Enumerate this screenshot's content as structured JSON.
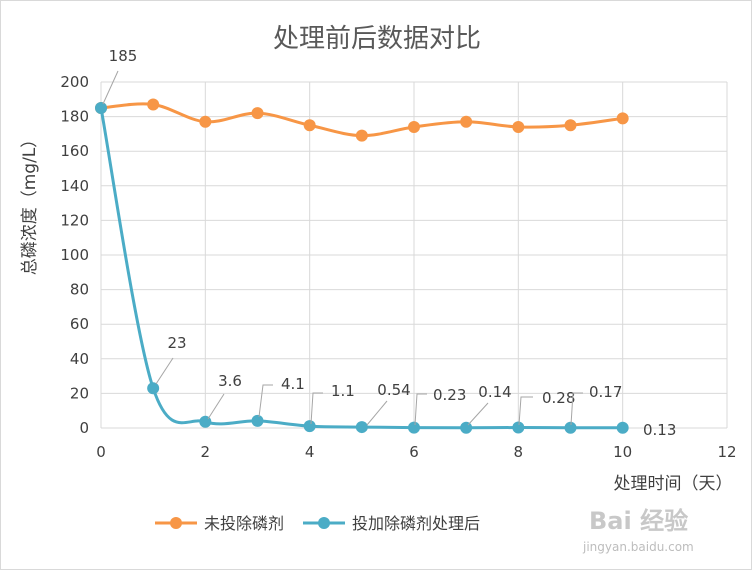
{
  "chart_data": {
    "type": "line",
    "title": "处理前后数据对比",
    "xlabel": "处理时间（天）",
    "ylabel": "总磷浓度（mg/L）",
    "xlim": [
      0,
      12
    ],
    "ylim": [
      0,
      200
    ],
    "x_ticks": [
      0,
      2,
      4,
      6,
      8,
      10,
      12
    ],
    "y_ticks": [
      0,
      20,
      40,
      60,
      80,
      100,
      120,
      140,
      160,
      180,
      200
    ],
    "grid": true,
    "legend_position": "bottom",
    "series": [
      {
        "name": "未投除磷剂",
        "color": "#f79646",
        "x": [
          0,
          1,
          2,
          3,
          4,
          5,
          6,
          7,
          8,
          9,
          10
        ],
        "values": [
          185,
          187,
          177,
          182,
          175,
          169,
          174,
          177,
          174,
          175,
          179
        ]
      },
      {
        "name": "投加除磷剂处理后",
        "color": "#4bacc6",
        "x": [
          0,
          1,
          2,
          3,
          4,
          5,
          6,
          7,
          8,
          9,
          10
        ],
        "values": [
          185,
          23,
          3.6,
          4.1,
          1.1,
          0.54,
          0.23,
          0.14,
          0.28,
          0.17,
          0.13
        ],
        "data_labels": [
          "185",
          "23",
          "3.6",
          "4.1",
          "1.1",
          "0.54",
          "0.23",
          "0.14",
          "0.28",
          "0.17",
          "0.13"
        ]
      }
    ]
  },
  "watermark": {
    "brand": "Bai 经验",
    "url": "jingyan.baidu.com"
  }
}
